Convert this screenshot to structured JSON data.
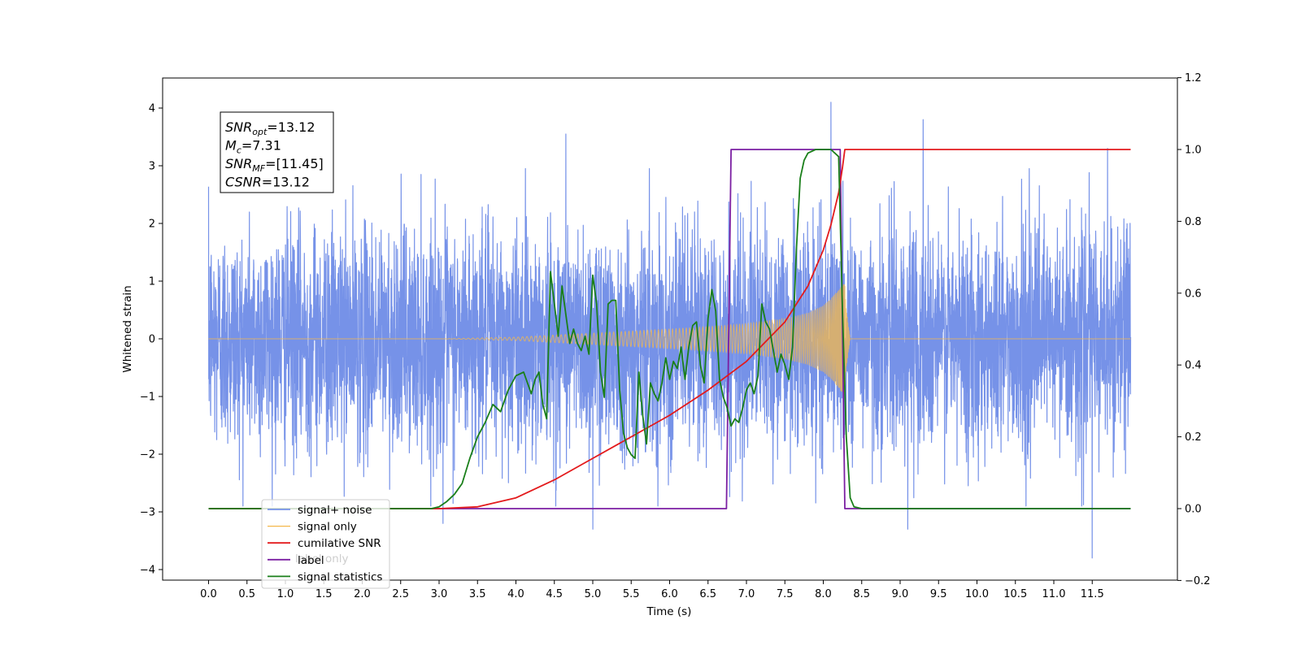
{
  "chart_data": {
    "type": "line",
    "xlabel": "Time (s)",
    "ylabel": "Whitened strain",
    "xlim": [
      -0.6,
      12.6
    ],
    "ylim_left": [
      -4.4,
      4.5
    ],
    "ylim_right": [
      -0.2,
      1.2
    ],
    "x_ticks": [
      "0.0",
      "0.5",
      "1.0",
      "1.5",
      "2.0",
      "2.5",
      "3.0",
      "3.5",
      "4.0",
      "4.5",
      "5.0",
      "5.5",
      "6.0",
      "6.5",
      "7.0",
      "7.5",
      "8.0",
      "8.5",
      "9.0",
      "9.5",
      "10.0",
      "10.5",
      "11.0",
      "11.5"
    ],
    "y_ticks_left": [
      "−4",
      "−3",
      "−2",
      "−1",
      "0",
      "1",
      "2",
      "3",
      "4"
    ],
    "y_ticks_right": [
      "−0.2",
      "0.0",
      "0.2",
      "0.4",
      "0.6",
      "0.8",
      "1.0",
      "1.2"
    ],
    "grid": false,
    "legend_position": "lower-left",
    "info_box": {
      "lines": [
        {
          "base": "SNR",
          "sub": "opt",
          "rest": "=13.12"
        },
        {
          "base": "M",
          "sub": "c",
          "rest": "=7.31"
        },
        {
          "base": "SNR",
          "sub": "MF",
          "rest": "=[11.45]"
        },
        {
          "base": "CSNR",
          "sub": "",
          "rest": "=13.12"
        }
      ]
    },
    "series": [
      {
        "name": "signal+ noise",
        "axis": "left",
        "color": "#7692e8",
        "description": "noise band",
        "x_range": [
          0.0,
          12.0
        ],
        "notable_spikes": [
          [
            4.65,
            3.55
          ],
          [
            8.1,
            4.1
          ],
          [
            9.3,
            3.8
          ],
          [
            11.5,
            -3.8
          ],
          [
            11.7,
            3.3
          ],
          [
            5.0,
            -3.3
          ],
          [
            9.1,
            -3.3
          ],
          [
            3.05,
            -3.2
          ]
        ]
      },
      {
        "name": "signal only",
        "axis": "left",
        "color": "#f5b84b",
        "description": "chirp",
        "x": [
          0.0,
          3.0,
          4.0,
          5.0,
          6.0,
          6.5,
          7.0,
          7.5,
          7.8,
          8.0,
          8.1,
          8.2,
          8.25,
          8.28,
          8.3,
          8.35,
          12.0
        ],
        "amplitude": [
          0.0,
          0.0,
          0.03,
          0.1,
          0.17,
          0.21,
          0.26,
          0.35,
          0.45,
          0.58,
          0.7,
          0.85,
          0.95,
          0.95,
          0.5,
          0.0,
          0.0
        ]
      },
      {
        "name": "cumilative SNR",
        "axis": "right",
        "color": "#e31a1c",
        "x": [
          0.0,
          3.0,
          3.5,
          4.0,
          4.5,
          5.0,
          5.5,
          6.0,
          6.5,
          7.0,
          7.5,
          7.8,
          8.0,
          8.1,
          8.2,
          8.25,
          8.28,
          12.0
        ],
        "values": [
          0.0,
          0.0,
          0.005,
          0.03,
          0.08,
          0.14,
          0.2,
          0.26,
          0.33,
          0.41,
          0.52,
          0.62,
          0.72,
          0.79,
          0.88,
          0.95,
          1.0,
          1.0
        ]
      },
      {
        "name": "label",
        "axis": "right",
        "color": "#7b1fa2",
        "x": [
          0.0,
          6.74,
          6.8,
          8.22,
          8.28,
          12.0
        ],
        "values": [
          0.0,
          0.0,
          1.0,
          1.0,
          0.0,
          0.0
        ]
      },
      {
        "name": "signal statistics",
        "axis": "right",
        "color": "#1a7f1a",
        "x": [
          0.0,
          2.9,
          3.0,
          3.1,
          3.2,
          3.3,
          3.4,
          3.5,
          3.6,
          3.7,
          3.8,
          3.9,
          4.0,
          4.1,
          4.2,
          4.25,
          4.3,
          4.35,
          4.4,
          4.45,
          4.5,
          4.55,
          4.6,
          4.65,
          4.7,
          4.75,
          4.8,
          4.85,
          4.9,
          4.95,
          5.0,
          5.05,
          5.1,
          5.15,
          5.2,
          5.25,
          5.3,
          5.35,
          5.4,
          5.45,
          5.5,
          5.55,
          5.6,
          5.65,
          5.7,
          5.75,
          5.8,
          5.85,
          5.9,
          5.95,
          6.0,
          6.05,
          6.1,
          6.15,
          6.2,
          6.25,
          6.3,
          6.35,
          6.4,
          6.45,
          6.5,
          6.55,
          6.6,
          6.65,
          6.7,
          6.75,
          6.8,
          6.85,
          6.9,
          6.95,
          7.0,
          7.05,
          7.1,
          7.15,
          7.2,
          7.25,
          7.3,
          7.35,
          7.4,
          7.45,
          7.5,
          7.55,
          7.6,
          7.65,
          7.7,
          7.75,
          7.8,
          7.9,
          8.0,
          8.1,
          8.2,
          8.25,
          8.3,
          8.35,
          8.4,
          8.5,
          12.0
        ],
        "values": [
          0.0,
          0.0,
          0.005,
          0.02,
          0.04,
          0.07,
          0.14,
          0.2,
          0.24,
          0.29,
          0.27,
          0.33,
          0.37,
          0.38,
          0.32,
          0.36,
          0.38,
          0.29,
          0.25,
          0.66,
          0.57,
          0.48,
          0.62,
          0.54,
          0.46,
          0.5,
          0.46,
          0.44,
          0.48,
          0.43,
          0.65,
          0.57,
          0.38,
          0.31,
          0.57,
          0.58,
          0.58,
          0.33,
          0.21,
          0.17,
          0.15,
          0.14,
          0.38,
          0.26,
          0.18,
          0.35,
          0.32,
          0.3,
          0.35,
          0.42,
          0.36,
          0.41,
          0.39,
          0.45,
          0.36,
          0.45,
          0.51,
          0.52,
          0.4,
          0.35,
          0.53,
          0.61,
          0.55,
          0.36,
          0.31,
          0.28,
          0.23,
          0.25,
          0.24,
          0.28,
          0.33,
          0.35,
          0.32,
          0.37,
          0.57,
          0.52,
          0.5,
          0.44,
          0.38,
          0.43,
          0.4,
          0.36,
          0.45,
          0.72,
          0.92,
          0.97,
          0.99,
          1.0,
          1.0,
          1.0,
          0.98,
          0.55,
          0.2,
          0.03,
          0.005,
          0.0,
          0.0
        ]
      }
    ],
    "legend_entries": [
      "signal+ noise",
      "signal only",
      "cumilative SNR",
      "label",
      "signal statistics"
    ],
    "legend_occluded_text": [
      "label only"
    ]
  }
}
